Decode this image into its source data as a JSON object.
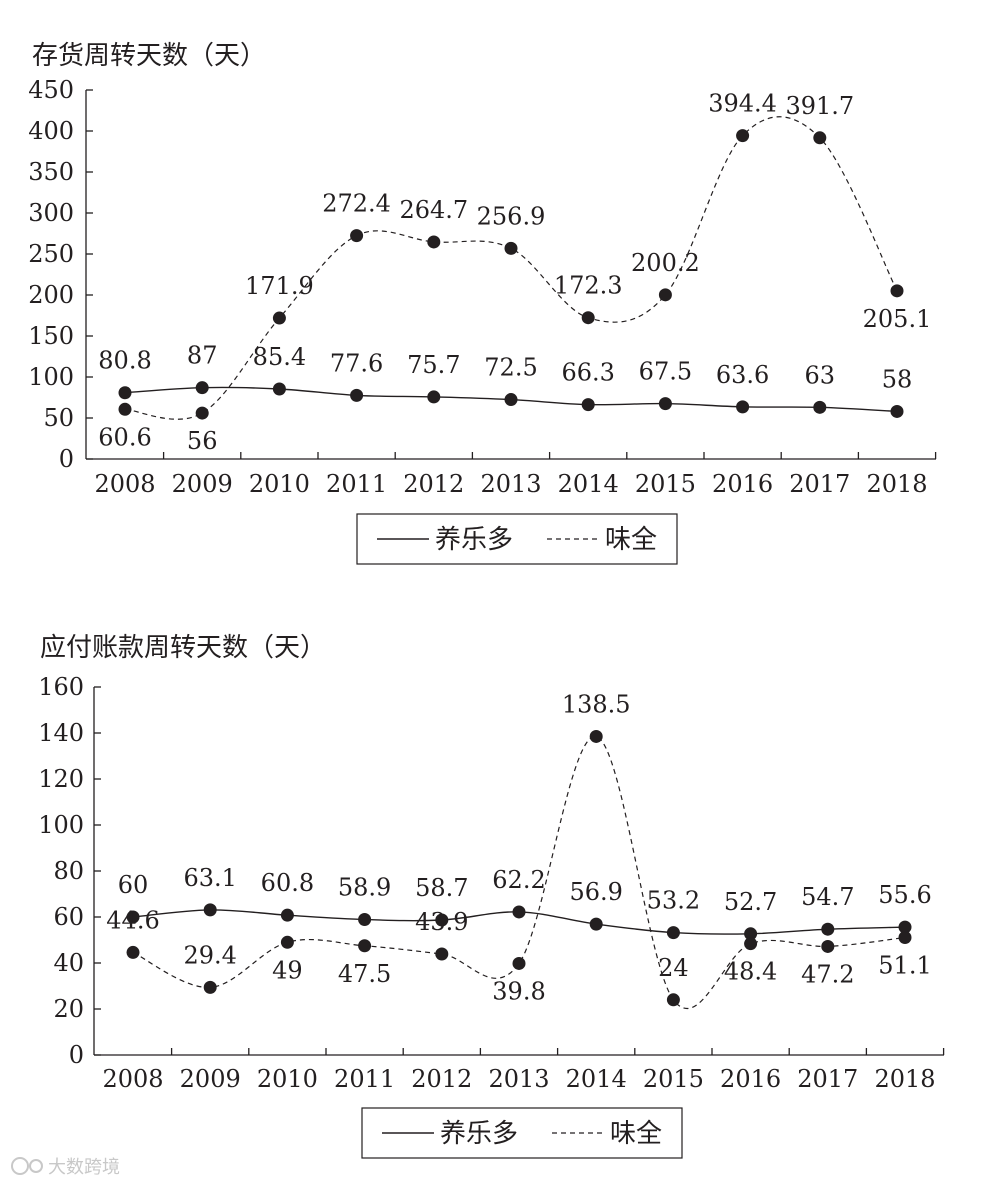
{
  "chart_data": [
    {
      "type": "line",
      "title": "存货周转天数（天）",
      "categories": [
        "2008",
        "2009",
        "2010",
        "2011",
        "2012",
        "2013",
        "2014",
        "2015",
        "2016",
        "2017",
        "2018"
      ],
      "ylim": [
        0,
        450
      ],
      "yticks": [
        0,
        50,
        100,
        150,
        200,
        250,
        300,
        350,
        400,
        450
      ],
      "legend": "bottom-center",
      "series": [
        {
          "name": "养乐多",
          "style": "solid",
          "values": [
            80.8,
            87,
            85.4,
            77.6,
            75.7,
            72.5,
            66.3,
            67.5,
            63.6,
            63,
            58
          ],
          "labels": [
            "80.8",
            "87",
            "85.4",
            "77.6",
            "75.7",
            "72.5",
            "66.3",
            "67.5",
            "63.6",
            "63",
            "58"
          ]
        },
        {
          "name": "味全",
          "style": "dashed",
          "values": [
            60.6,
            56,
            171.9,
            272.4,
            264.7,
            256.9,
            172.3,
            200.2,
            394.4,
            391.7,
            205.1
          ],
          "labels": [
            "60.6",
            "56",
            "171.9",
            "272.4",
            "264.7",
            "256.9",
            "172.3",
            "200.2",
            "394.4",
            "391.7",
            "205.1"
          ]
        }
      ]
    },
    {
      "type": "line",
      "title": "应付账款周转天数（天）",
      "categories": [
        "2008",
        "2009",
        "2010",
        "2011",
        "2012",
        "2013",
        "2014",
        "2015",
        "2016",
        "2017",
        "2018"
      ],
      "ylim": [
        0,
        160
      ],
      "yticks": [
        0,
        20,
        40,
        60,
        80,
        100,
        120,
        140,
        160
      ],
      "legend": "bottom-center",
      "series": [
        {
          "name": "养乐多",
          "style": "solid",
          "values": [
            60,
            63.1,
            60.8,
            58.9,
            58.7,
            62.2,
            56.9,
            53.2,
            52.7,
            54.7,
            55.6
          ],
          "labels": [
            "60",
            "63.1",
            "60.8",
            "58.9",
            "58.7",
            "62.2",
            "56.9",
            "53.2",
            "52.7",
            "54.7",
            "55.6"
          ]
        },
        {
          "name": "味全",
          "style": "dashed",
          "values": [
            44.6,
            29.4,
            49,
            47.5,
            43.9,
            39.8,
            138.5,
            24,
            48.4,
            47.2,
            51.1
          ],
          "labels": [
            "44.6",
            "29.4",
            "49",
            "47.5",
            "43.9",
            "39.8",
            "138.5",
            "24",
            "48.4",
            "47.2",
            "51.1"
          ]
        }
      ]
    }
  ],
  "watermark": "大数跨境"
}
